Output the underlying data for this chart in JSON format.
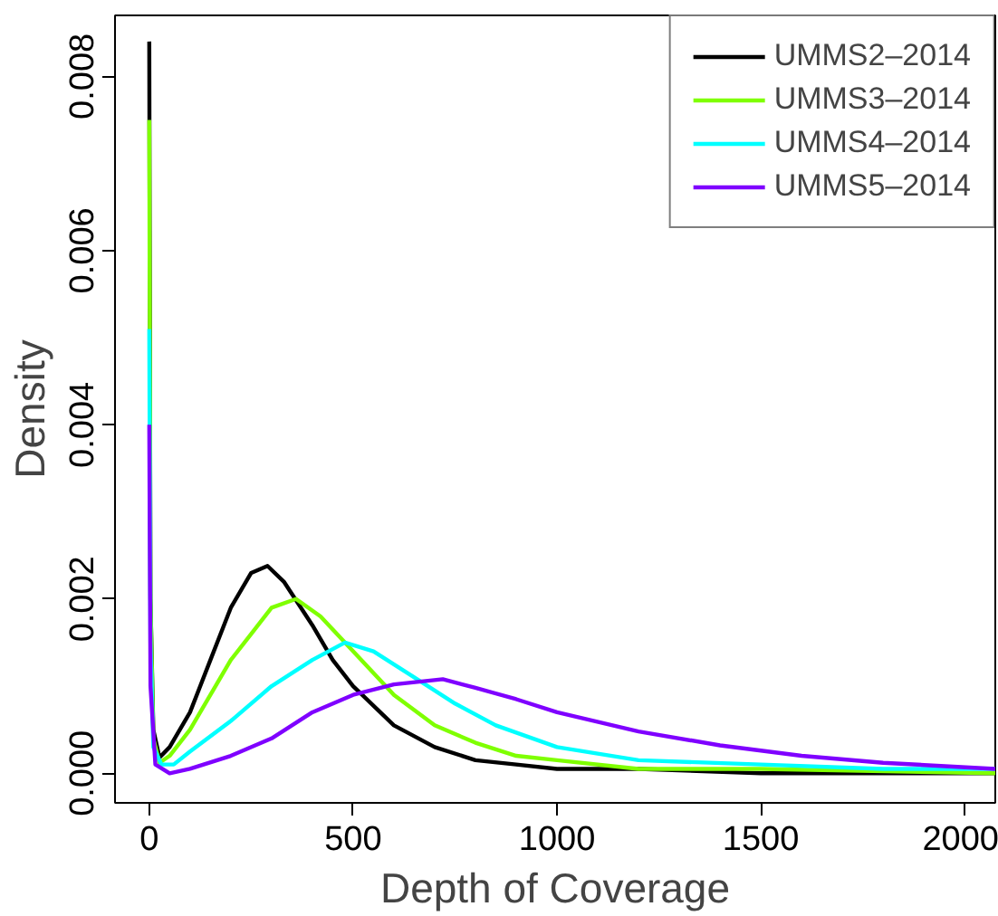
{
  "chart_data": {
    "type": "line",
    "xlabel": "Depth of Coverage",
    "ylabel": "Density",
    "xlim": [
      -84,
      2075
    ],
    "ylim": [
      -0.00034,
      0.0087
    ],
    "xticks": [
      0,
      500,
      1000,
      1500,
      2000
    ],
    "yticks": [
      {
        "value": 0,
        "label": "0.000"
      },
      {
        "value": 0.002,
        "label": "0.002"
      },
      {
        "value": 0.004,
        "label": "0.004"
      },
      {
        "value": 0.006,
        "label": "0.006"
      },
      {
        "value": 0.008,
        "label": "0.008"
      }
    ],
    "grid": false,
    "legend": "top right",
    "line_style": "solid",
    "marker": "none",
    "series": [
      {
        "name": "UMMS2–2014",
        "color": "#000000",
        "x": [
          0,
          3,
          10,
          25,
          50,
          100,
          150,
          200,
          250,
          290,
          330,
          400,
          450,
          500,
          600,
          700,
          800,
          900,
          1000,
          1200,
          1500,
          2075
        ],
        "values": [
          0.0084,
          0.002,
          0.0005,
          0.00018,
          0.0003,
          0.0007,
          0.0013,
          0.0019,
          0.0023,
          0.00238,
          0.0022,
          0.0017,
          0.0013,
          0.001,
          0.00055,
          0.0003,
          0.00015,
          0.0001,
          5e-05,
          5e-05,
          0,
          0
        ]
      },
      {
        "name": "UMMS3–2014",
        "color": "#7fff00",
        "x": [
          0,
          3,
          10,
          25,
          50,
          100,
          150,
          200,
          250,
          300,
          360,
          420,
          500,
          600,
          700,
          800,
          900,
          1000,
          1200,
          1500,
          2075
        ],
        "values": [
          0.0075,
          0.002,
          0.0004,
          0.00012,
          0.0002,
          0.0005,
          0.0009,
          0.0013,
          0.0016,
          0.0019,
          0.002,
          0.0018,
          0.0014,
          0.0009,
          0.00055,
          0.00035,
          0.0002,
          0.00015,
          5e-05,
          5e-05,
          0
        ]
      },
      {
        "name": "UMMS4–2014",
        "color": "#00ffff",
        "x": [
          0,
          3,
          10,
          30,
          60,
          100,
          200,
          300,
          400,
          480,
          550,
          650,
          750,
          850,
          1000,
          1200,
          1500,
          1800,
          2075
        ],
        "values": [
          0.0051,
          0.0015,
          0.0003,
          0.0001,
          0.0001,
          0.00025,
          0.0006,
          0.001,
          0.0013,
          0.0015,
          0.0014,
          0.0011,
          0.0008,
          0.00055,
          0.0003,
          0.00015,
          0.0001,
          5e-05,
          5e-05
        ]
      },
      {
        "name": "UMMS5–2014",
        "color": "#7f00ff",
        "x": [
          0,
          3,
          15,
          50,
          100,
          200,
          300,
          400,
          500,
          600,
          720,
          800,
          900,
          1000,
          1200,
          1400,
          1600,
          1800,
          2075
        ],
        "values": [
          0.004,
          0.001,
          0.0001,
          0,
          5e-05,
          0.0002,
          0.0004,
          0.0007,
          0.0009,
          0.00102,
          0.00108,
          0.00098,
          0.00085,
          0.0007,
          0.00048,
          0.00032,
          0.0002,
          0.00012,
          5e-05
        ]
      }
    ]
  }
}
